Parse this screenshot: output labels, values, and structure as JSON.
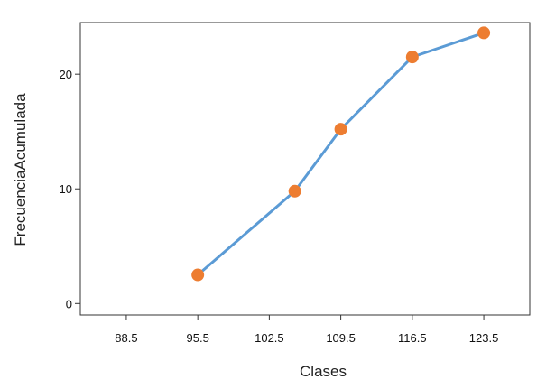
{
  "chart_data": {
    "type": "line",
    "title": "",
    "xlabel": "Clases",
    "ylabel": "FrecuenciaAcumulada",
    "x_ticks": [
      "88.5",
      "95.5",
      "102.5",
      "109.5",
      "116.5",
      "123.5"
    ],
    "y_ticks": [
      "0",
      "10",
      "20"
    ],
    "x": [
      95.5,
      105.0,
      109.5,
      116.5,
      123.5
    ],
    "y": [
      2.5,
      9.8,
      15.2,
      21.5,
      23.6
    ],
    "xlim": [
      84.0,
      128.0
    ],
    "ylim": [
      -1.0,
      24.5
    ],
    "grid": false,
    "line_color": "#5b9bd5",
    "marker_color": "#ed7d31"
  }
}
